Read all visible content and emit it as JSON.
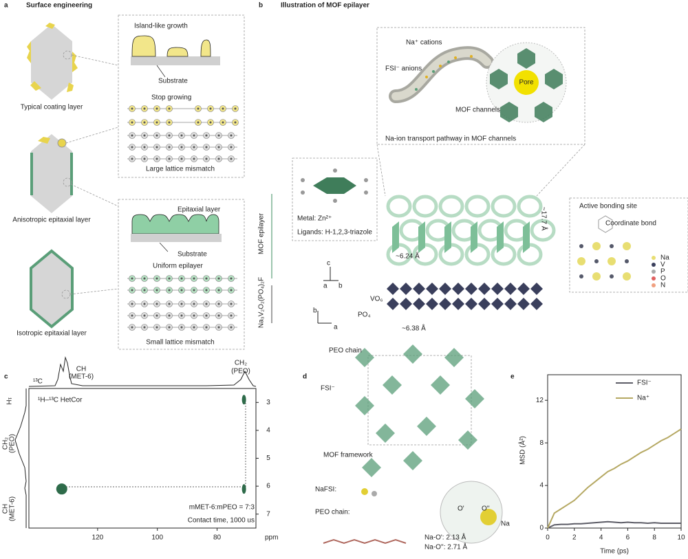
{
  "panel_a": {
    "letter": "a",
    "title": "Surface engineering",
    "labels": [
      "Typical coating layer",
      "Anisotropic epitaxial layer",
      "Isotropic epitaxial layer",
      "Island-like growth",
      "Substrate",
      "Stop growing",
      "Large lattice mismatch",
      "Epitaxial layer",
      "Substrate",
      "Uniform epilayer",
      "Small lattice mismatch"
    ]
  },
  "panel_b": {
    "letter": "b",
    "title": "Illustration of MOF epilayer",
    "labels": [
      "Na⁺ cations",
      "FSI⁻ anions",
      "MOF channels",
      "Pore",
      "Na-ion transport pathway in MOF channels",
      "Metal: Zn²⁺",
      "Ligands: H-1,2,3-triazole",
      "MOF epilayer",
      "Na₃V₂O₂(PO₄)₂F",
      "~17.7 Å",
      "~6.24 Å",
      "VO₆",
      "PO₄",
      "~6.38 Å",
      "c",
      "a",
      "b",
      "b",
      "a",
      "Active bonding site",
      "Coordinate bond",
      "Na",
      "V",
      "P",
      "O",
      "N"
    ]
  },
  "panel_d": {
    "letter": "d",
    "labels": [
      "PEO chain",
      "FSI⁻",
      "MOF framework",
      "NaFSI:",
      "PEO chain:",
      "O'",
      "O''",
      "Na",
      "Na-O': 2.13 Å",
      "Na-O'': 2.71 Å"
    ]
  },
  "chart_data": [
    {
      "letter": "c",
      "type": "scatter",
      "title": "¹H–¹³C HetCor",
      "xlabel": "ppm",
      "ylabel": "¹H",
      "top_label": "¹³C",
      "annotations": [
        "CH",
        "(MET-6)",
        "CH₂",
        "(PEO)",
        "CH₂",
        "(PEO)",
        "CH",
        "(MET-6)",
        "mMET-6:mPEO = 7:3",
        "Contact time, 1000 us"
      ],
      "x": [
        132,
        71,
        71
      ],
      "values": [
        6.1,
        2.9,
        6.1
      ],
      "color": "#2e6b4a",
      "xlim": [
        143,
        67
      ],
      "xticks": [
        120,
        100,
        80
      ],
      "ylim": [
        7.5,
        2.5
      ],
      "yticks": [
        3,
        4,
        5,
        6,
        7
      ]
    },
    {
      "letter": "e",
      "type": "line",
      "xlabel": "Time (ps)",
      "ylabel": "MSD (Å²)",
      "x": [
        0,
        0.5,
        1,
        1.5,
        2,
        2.5,
        3,
        3.5,
        4,
        4.5,
        5,
        5.5,
        6,
        6.5,
        7,
        7.5,
        8,
        8.5,
        9,
        9.5,
        10
      ],
      "series": [
        {
          "name": "FSI⁻",
          "color": "#5c5c66",
          "values": [
            0,
            0.3,
            0.35,
            0.35,
            0.4,
            0.4,
            0.45,
            0.5,
            0.55,
            0.6,
            0.55,
            0.5,
            0.55,
            0.5,
            0.5,
            0.45,
            0.5,
            0.45,
            0.45,
            0.45,
            0.45
          ]
        },
        {
          "name": "Na⁺",
          "color": "#b5a862",
          "values": [
            0,
            1.4,
            1.8,
            2.2,
            2.6,
            3.2,
            3.8,
            4.3,
            4.8,
            5.3,
            5.6,
            6.0,
            6.3,
            6.7,
            7.1,
            7.4,
            7.8,
            8.2,
            8.5,
            8.9,
            9.3
          ]
        }
      ],
      "xlim": [
        0,
        10
      ],
      "xticks": [
        0,
        2,
        4,
        6,
        8,
        10
      ],
      "ylim": [
        0,
        14.4
      ],
      "yticks": [
        0,
        4,
        8,
        12
      ],
      "legend": "upper-right"
    }
  ]
}
